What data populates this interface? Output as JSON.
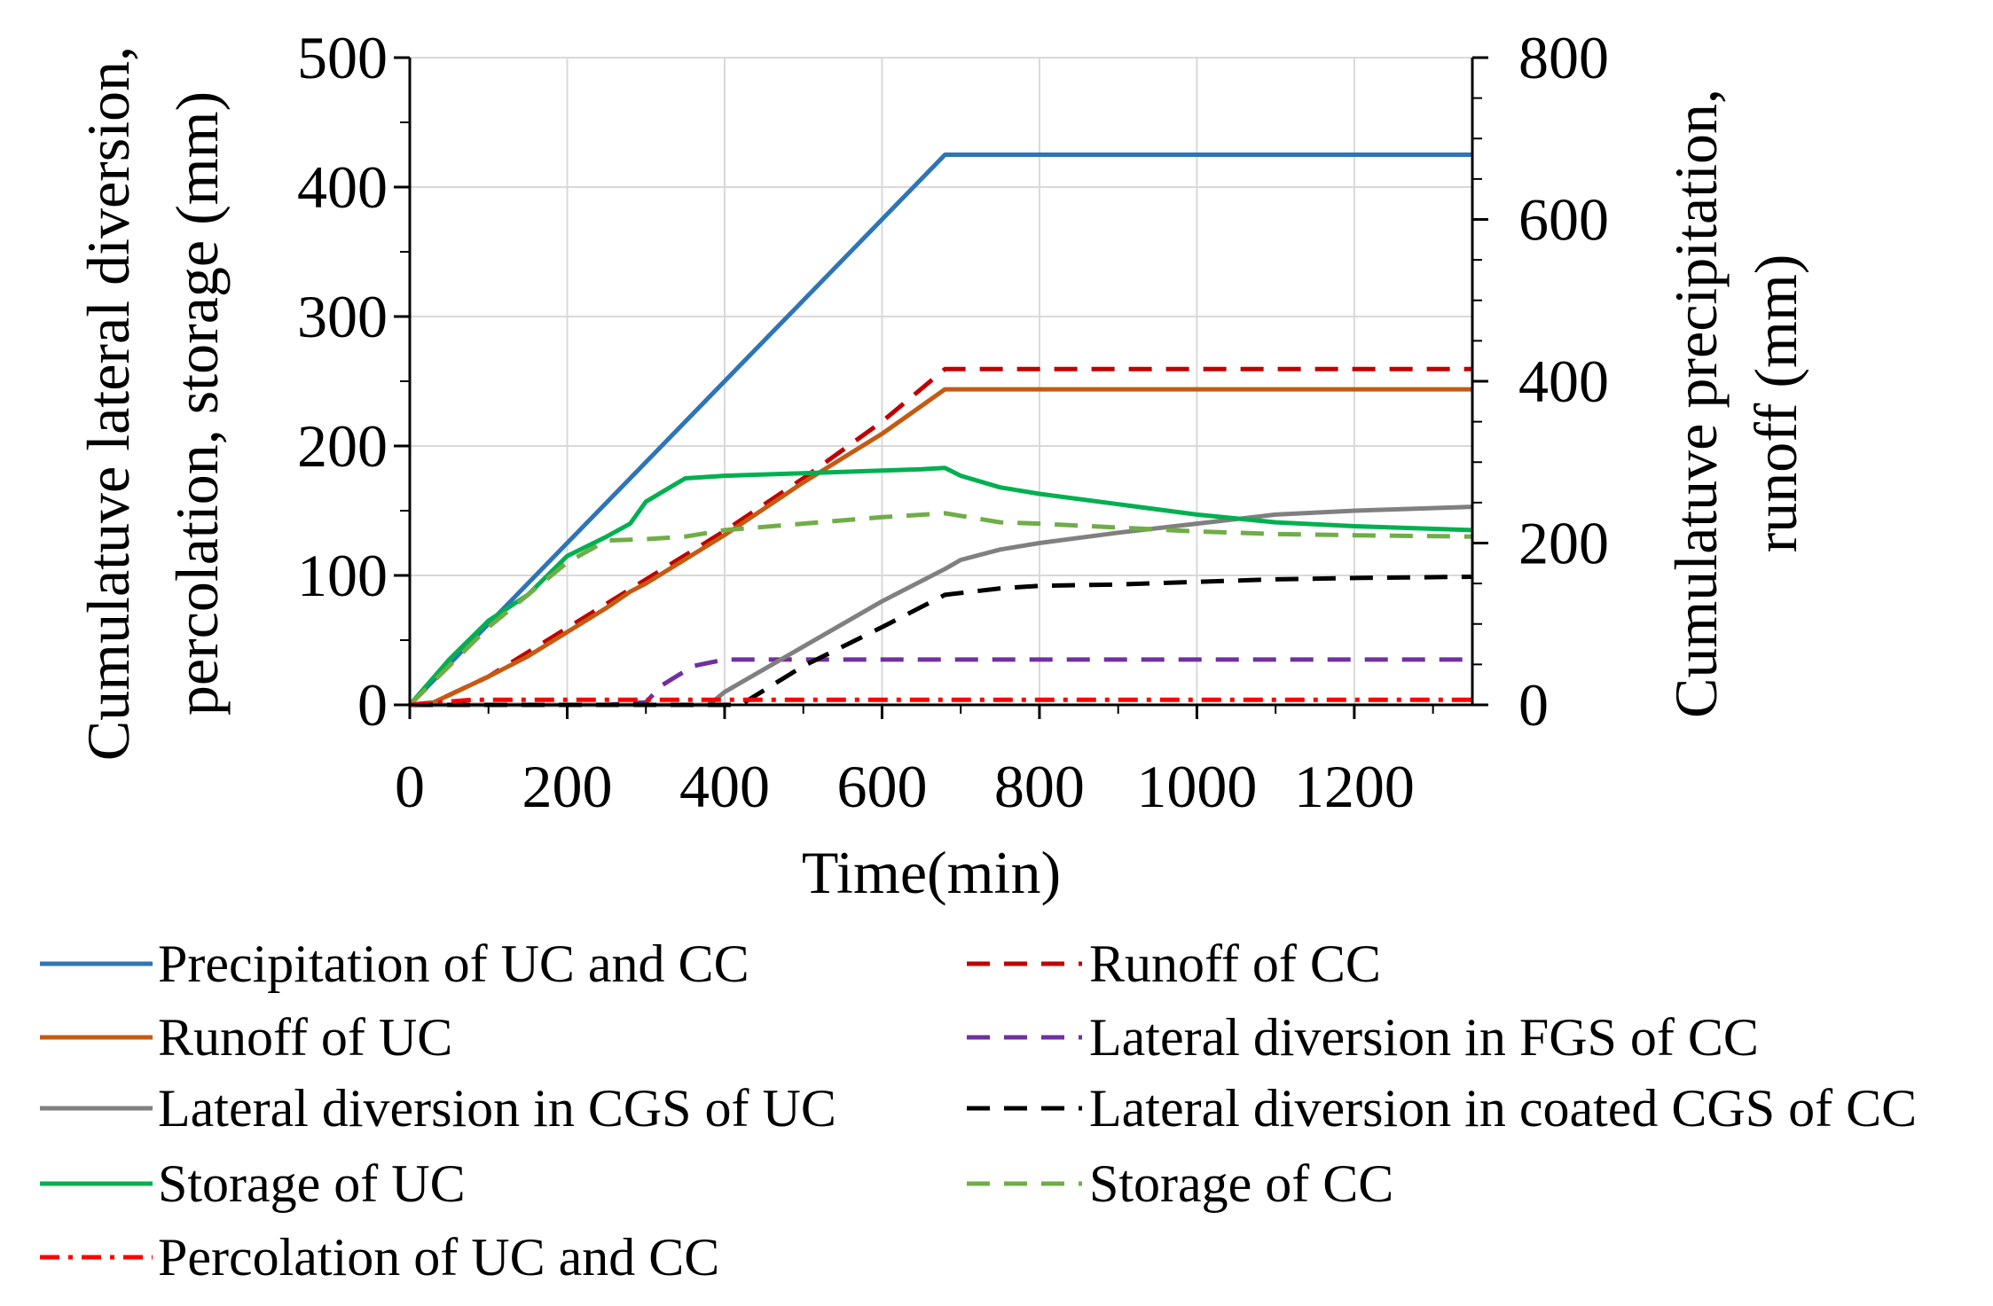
{
  "chart_data": {
    "type": "line",
    "title": "",
    "xlabel": "Time(min)",
    "ylabel_left": "Cumulatuve lateral diversion, percolation, storage (mm)",
    "ylabel_left_lines": [
      "Cumulatuve lateral diversion,",
      "percolation, storage (mm)"
    ],
    "ylabel_right": "Cumulatuve precipitation, runoff (mm)",
    "ylabel_right_lines": [
      "Cumulatuve precipitation,",
      "runoff (mm)"
    ],
    "xlim": [
      0,
      1350
    ],
    "ylim_left": [
      0,
      500
    ],
    "ylim_right": [
      0,
      800
    ],
    "x_ticks": [
      0,
      200,
      400,
      600,
      800,
      1000,
      1200
    ],
    "y_left_ticks": [
      0,
      100,
      200,
      300,
      400,
      500
    ],
    "y_right_ticks": [
      0,
      200,
      400,
      600,
      800
    ],
    "grid": true,
    "legend_position": "below",
    "series": [
      {
        "name": "Precipitation of UC and CC",
        "axis": "right",
        "color": "#2E75B6",
        "style": "solid",
        "x": [
          0,
          680,
          1350
        ],
        "y": [
          0,
          680,
          680
        ]
      },
      {
        "name": "Runoff of CC",
        "axis": "right",
        "color": "#C00000",
        "style": "dashed",
        "x": [
          0,
          30,
          100,
          200,
          300,
          400,
          500,
          600,
          680,
          1350
        ],
        "y": [
          0,
          3,
          35,
          95,
          155,
          215,
          280,
          350,
          415,
          415
        ]
      },
      {
        "name": "Runoff of UC",
        "axis": "right",
        "color": "#C55A11",
        "style": "solid",
        "x": [
          0,
          30,
          100,
          150,
          200,
          250,
          280,
          300,
          400,
          500,
          600,
          680,
          1350
        ],
        "y": [
          0,
          3,
          35,
          60,
          90,
          120,
          140,
          150,
          210,
          275,
          335,
          390,
          390
        ]
      },
      {
        "name": "Lateral diversion in FGS of CC",
        "axis": "left",
        "color": "#7030A0",
        "style": "dashed",
        "x": [
          0,
          250,
          300,
          320,
          360,
          400,
          500,
          1350
        ],
        "y": [
          0,
          0,
          2,
          15,
          30,
          35,
          35,
          35
        ]
      },
      {
        "name": "Lateral diversion in CGS of UC",
        "axis": "left",
        "color": "#808080",
        "style": "solid",
        "x": [
          0,
          380,
          400,
          500,
          600,
          680,
          700,
          750,
          800,
          900,
          1000,
          1100,
          1200,
          1350
        ],
        "y": [
          0,
          0,
          10,
          45,
          80,
          105,
          112,
          120,
          125,
          133,
          140,
          147,
          150,
          153
        ]
      },
      {
        "name": "Lateral diversion in coated CGS of CC",
        "axis": "left",
        "color": "#000000",
        "style": "dashed",
        "x": [
          0,
          420,
          500,
          600,
          680,
          750,
          800,
          900,
          1000,
          1100,
          1200,
          1350
        ],
        "y": [
          0,
          0,
          30,
          60,
          85,
          90,
          92,
          93,
          95,
          97,
          98,
          99
        ]
      },
      {
        "name": "Storage of UC",
        "axis": "left",
        "color": "#00B050",
        "style": "solid",
        "x": [
          0,
          50,
          100,
          150,
          200,
          250,
          280,
          300,
          350,
          400,
          450,
          500,
          550,
          600,
          650,
          680,
          700,
          750,
          800,
          900,
          1000,
          1100,
          1200,
          1350
        ],
        "y": [
          0,
          35,
          65,
          85,
          115,
          130,
          140,
          157,
          175,
          177,
          178,
          179,
          180,
          181,
          182,
          183,
          177,
          168,
          163,
          155,
          147,
          141,
          138,
          135
        ]
      },
      {
        "name": "Storage of CC",
        "axis": "left",
        "color": "#70AD47",
        "style": "dashed",
        "x": [
          0,
          50,
          100,
          150,
          200,
          250,
          300,
          350,
          400,
          500,
          600,
          680,
          700,
          750,
          800,
          900,
          1000,
          1100,
          1200,
          1350
        ],
        "y": [
          0,
          30,
          60,
          85,
          110,
          127,
          128,
          130,
          135,
          140,
          145,
          148,
          146,
          141,
          140,
          137,
          134,
          132,
          131,
          130
        ]
      },
      {
        "name": "Percolation of UC and CC",
        "axis": "left",
        "color": "#FF0000",
        "style": "dashdot",
        "x": [
          0,
          80,
          1350
        ],
        "y": [
          0,
          4,
          4
        ]
      }
    ]
  },
  "legend": {
    "left": [
      "Precipitation of UC and CC",
      "Runoff of UC",
      "Lateral diversion in CGS of UC",
      "Storage of UC",
      "Percolation of UC and CC"
    ],
    "right": [
      "Runoff of CC",
      "Lateral diversion in FGS of CC",
      "Lateral diversion in coated CGS of CC",
      "Storage of CC"
    ]
  }
}
